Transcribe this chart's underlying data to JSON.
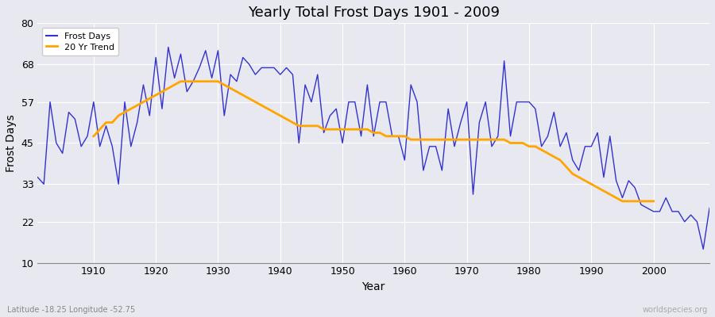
{
  "title": "Yearly Total Frost Days 1901 - 2009",
  "xlabel": "Year",
  "ylabel": "Frost Days",
  "subtitle": "Latitude -18.25 Longitude -52.75",
  "watermark": "worldspecies.org",
  "background_color": "#e8e8f0",
  "plot_bg_color": "#e8e8f0",
  "line_color": "#3333cc",
  "trend_color": "#ffa500",
  "ylim": [
    10,
    80
  ],
  "yticks": [
    10,
    22,
    33,
    45,
    57,
    68,
    80
  ],
  "xlim": [
    1901,
    2009
  ],
  "years": [
    1901,
    1902,
    1903,
    1904,
    1905,
    1906,
    1907,
    1908,
    1909,
    1910,
    1911,
    1912,
    1913,
    1914,
    1915,
    1916,
    1917,
    1918,
    1919,
    1920,
    1921,
    1922,
    1923,
    1924,
    1925,
    1926,
    1927,
    1928,
    1929,
    1930,
    1931,
    1932,
    1933,
    1934,
    1935,
    1936,
    1937,
    1938,
    1939,
    1940,
    1941,
    1942,
    1943,
    1944,
    1945,
    1946,
    1947,
    1948,
    1949,
    1950,
    1951,
    1952,
    1953,
    1954,
    1955,
    1956,
    1957,
    1958,
    1959,
    1960,
    1961,
    1962,
    1963,
    1964,
    1965,
    1966,
    1967,
    1968,
    1969,
    1970,
    1971,
    1972,
    1973,
    1974,
    1975,
    1976,
    1977,
    1978,
    1979,
    1980,
    1981,
    1982,
    1983,
    1984,
    1985,
    1986,
    1987,
    1988,
    1989,
    1990,
    1991,
    1992,
    1993,
    1994,
    1995,
    1996,
    1997,
    1998,
    1999,
    2000,
    2001,
    2002,
    2003,
    2004,
    2005,
    2006,
    2007,
    2008,
    2009
  ],
  "frost_days": [
    35,
    33,
    57,
    45,
    42,
    54,
    52,
    44,
    47,
    57,
    44,
    50,
    44,
    33,
    57,
    44,
    51,
    62,
    53,
    70,
    55,
    73,
    64,
    71,
    60,
    63,
    67,
    72,
    64,
    72,
    53,
    65,
    63,
    70,
    68,
    65,
    67,
    67,
    67,
    65,
    67,
    65,
    45,
    62,
    57,
    65,
    48,
    53,
    55,
    45,
    57,
    57,
    47,
    62,
    47,
    57,
    57,
    47,
    47,
    40,
    62,
    57,
    37,
    44,
    44,
    37,
    55,
    44,
    51,
    57,
    30,
    51,
    57,
    44,
    47,
    69,
    47,
    57,
    57,
    57,
    55,
    44,
    47,
    54,
    44,
    48,
    40,
    37,
    44,
    44,
    48,
    35,
    47,
    34,
    29,
    34,
    32,
    27,
    26,
    25,
    25,
    29,
    25,
    25,
    22,
    24,
    22,
    14,
    26
  ],
  "trend_years": [
    1910,
    1911,
    1912,
    1913,
    1914,
    1915,
    1916,
    1917,
    1918,
    1919,
    1920,
    1921,
    1922,
    1923,
    1924,
    1925,
    1926,
    1927,
    1928,
    1929,
    1930,
    1931,
    1932,
    1933,
    1934,
    1935,
    1936,
    1937,
    1938,
    1939,
    1940,
    1941,
    1942,
    1943,
    1944,
    1945,
    1946,
    1947,
    1948,
    1949,
    1950,
    1951,
    1952,
    1953,
    1954,
    1955,
    1956,
    1957,
    1958,
    1959,
    1960,
    1961,
    1962,
    1963,
    1964,
    1965,
    1966,
    1967,
    1968,
    1969,
    1970,
    1971,
    1972,
    1973,
    1974,
    1975,
    1976,
    1977,
    1978,
    1979,
    1980,
    1981,
    1982,
    1983,
    1984,
    1985,
    1986,
    1987,
    1988,
    1989,
    1990,
    1991,
    1992,
    1993,
    1994,
    1995,
    1996,
    1997,
    1998,
    1999,
    2000
  ],
  "trend_values": [
    47,
    49,
    51,
    51,
    53,
    54,
    55,
    56,
    57,
    58,
    59,
    60,
    61,
    62,
    63,
    63,
    63,
    63,
    63,
    63,
    63,
    62,
    61,
    60,
    59,
    58,
    57,
    56,
    55,
    54,
    53,
    52,
    51,
    50,
    50,
    50,
    50,
    49,
    49,
    49,
    49,
    49,
    49,
    49,
    49,
    48,
    48,
    47,
    47,
    47,
    47,
    46,
    46,
    46,
    46,
    46,
    46,
    46,
    46,
    46,
    46,
    46,
    46,
    46,
    46,
    46,
    46,
    45,
    45,
    45,
    44,
    44,
    43,
    42,
    41,
    40,
    38,
    36,
    35,
    34,
    33,
    32,
    31,
    30,
    29,
    28,
    28,
    28,
    28,
    28,
    28
  ],
  "xticks": [
    1910,
    1920,
    1930,
    1940,
    1950,
    1960,
    1970,
    1980,
    1990,
    2000
  ]
}
